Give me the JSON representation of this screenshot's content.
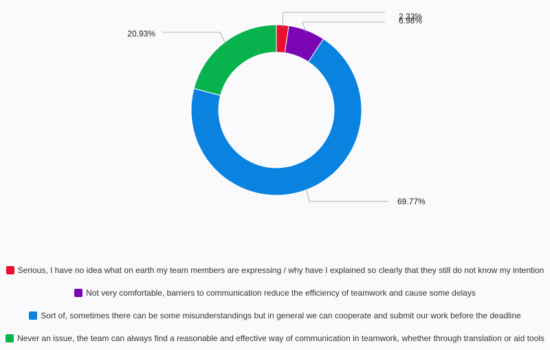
{
  "chart_data": {
    "type": "donut",
    "categories": [
      "Serious, I have no idea what on earth my team members are expressing / why have I explained so clearly that they still do not know my intention",
      "Not very comfortable, barriers to communication reduce the efficiency of teamwork and cause some delays",
      "Sort of, sometimes there can be some misunderstandings but in general we can cooperate and submit our work before the deadline",
      "Never an issue, the team can always find a reasonable and effective way of communication in teamwork, whether through translation or aid tools"
    ],
    "values": [
      2.33,
      6.98,
      69.77,
      20.93
    ],
    "labels": [
      "2.33%",
      "6.98%",
      "69.77%",
      "20.93%"
    ],
    "colors": [
      "#e8112d",
      "#7b06b6",
      "#0a83e0",
      "#08b24c"
    ],
    "legend_position": "bottom"
  }
}
